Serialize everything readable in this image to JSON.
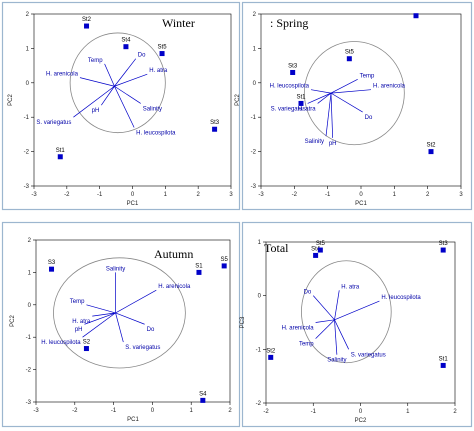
{
  "colors": {
    "frame": "#9cb6cf",
    "axis": "#000000",
    "point": "#0000c8",
    "vector": "#0000c8",
    "circle": "#888888",
    "var_text": "#0000a8"
  },
  "chart_data": [
    {
      "type": "scatter",
      "title": "Winter",
      "xlabel": "PC1",
      "ylabel": "PC2",
      "xlim": [
        -3,
        3
      ],
      "ylim": [
        -3,
        2
      ],
      "xticks": [
        "-3",
        "-2",
        "-1",
        "0",
        "1",
        "2",
        "3"
      ],
      "yticks": [
        "-3",
        "-2",
        "-1",
        "0",
        "1",
        "2"
      ],
      "points": [
        {
          "label": "St2",
          "x": -1.4,
          "y": 1.65
        },
        {
          "label": "St4",
          "x": -0.2,
          "y": 1.05
        },
        {
          "label": "St5",
          "x": 0.9,
          "y": 0.85
        },
        {
          "label": "St3",
          "x": 2.5,
          "y": -1.35
        },
        {
          "label": "St1",
          "x": -2.2,
          "y": -2.15
        }
      ],
      "circle": {
        "cx": -0.45,
        "cy": 0.0,
        "r": 1.45
      },
      "origin": {
        "x": -0.55,
        "y": -0.1
      },
      "vectors": [
        {
          "label": "Do",
          "x": 0.1,
          "y": 0.7
        },
        {
          "label": "Temp",
          "x": -0.85,
          "y": 0.55
        },
        {
          "label": "H. arenicola",
          "x": -1.6,
          "y": 0.15
        },
        {
          "label": "H. atra",
          "x": 0.45,
          "y": 0.25
        },
        {
          "label": "pH",
          "x": -0.95,
          "y": -0.65
        },
        {
          "label": "Salinity",
          "x": 0.25,
          "y": -0.6
        },
        {
          "label": "S. variegatus",
          "x": -1.8,
          "y": -1.0
        },
        {
          "label": "H. leucospilota",
          "x": 0.05,
          "y": -1.3
        }
      ]
    },
    {
      "type": "scatter",
      "title": "Spring",
      "title_prefix": ":",
      "xlabel": "PC1",
      "ylabel": "PC2",
      "xlim": [
        -3,
        3
      ],
      "ylim": [
        -3,
        2
      ],
      "xticks": [
        "-3",
        "-2",
        "-1",
        "0",
        "1",
        "2",
        "3"
      ],
      "yticks": [
        "-3",
        "-2",
        "-1",
        "0",
        "1",
        "2"
      ],
      "points": [
        {
          "label": "",
          "x": 1.65,
          "y": 1.95
        },
        {
          "label": "St5",
          "x": -0.35,
          "y": 0.7
        },
        {
          "label": "St3",
          "x": -2.05,
          "y": 0.3
        },
        {
          "label": "St1",
          "x": -1.8,
          "y": -0.6
        },
        {
          "label": "St2",
          "x": 2.1,
          "y": -2.0
        }
      ],
      "circle": {
        "cx": -0.2,
        "cy": -0.3,
        "r": 1.5
      },
      "origin": {
        "x": -0.9,
        "y": -0.3
      },
      "vectors": [
        {
          "label": "Temp",
          "x": -0.1,
          "y": 0.1
        },
        {
          "label": "H. arenicola",
          "x": 0.3,
          "y": -0.2
        },
        {
          "label": "H. leucospilota",
          "x": -1.5,
          "y": -0.2
        },
        {
          "label": "S. variegatus",
          "x": -1.6,
          "y": -0.6
        },
        {
          "label": "H. atra",
          "x": -1.3,
          "y": -0.6
        },
        {
          "label": "Do",
          "x": 0.05,
          "y": -0.85
        },
        {
          "label": "Salinity",
          "x": -1.05,
          "y": -1.55
        },
        {
          "label": "pH",
          "x": -0.85,
          "y": -1.6
        }
      ]
    },
    {
      "type": "scatter",
      "title": "Autumn",
      "xlabel": "PC1",
      "ylabel": "PC2",
      "xlim": [
        -3,
        2
      ],
      "ylim": [
        -3,
        2
      ],
      "xticks": [
        "-3",
        "-2",
        "-1",
        "0",
        "1",
        "2"
      ],
      "yticks": [
        "-3",
        "-2",
        "-1",
        "0",
        "1",
        "2"
      ],
      "points": [
        {
          "label": "S3",
          "x": -2.6,
          "y": 1.1
        },
        {
          "label": "S1",
          "x": 1.2,
          "y": 1.0
        },
        {
          "label": "S5",
          "x": 1.85,
          "y": 1.2
        },
        {
          "label": "S2",
          "x": -1.7,
          "y": -1.35
        },
        {
          "label": "S4",
          "x": 1.3,
          "y": -2.95
        }
      ],
      "circle": {
        "cx": -0.85,
        "cy": -0.25,
        "r": 1.7
      },
      "origin": {
        "x": -0.95,
        "y": -0.25
      },
      "vectors": [
        {
          "label": "Salinity",
          "x": -0.95,
          "y": 1.0
        },
        {
          "label": "H. arenicola",
          "x": 0.1,
          "y": 0.45
        },
        {
          "label": "Temp",
          "x": -1.7,
          "y": 0.0
        },
        {
          "label": "H. atra",
          "x": -1.55,
          "y": -0.35
        },
        {
          "label": "pH",
          "x": -1.75,
          "y": -0.6
        },
        {
          "label": "Do",
          "x": -0.2,
          "y": -0.6
        },
        {
          "label": "H. leucospilota",
          "x": -1.8,
          "y": -1.0
        },
        {
          "label": "S. variegatus",
          "x": -0.75,
          "y": -1.15
        }
      ]
    },
    {
      "type": "scatter",
      "title": "Total",
      "xlabel": "PC2",
      "ylabel": "PC3",
      "xlim": [
        -2,
        2
      ],
      "ylim": [
        -2,
        1
      ],
      "xticks": [
        "-2",
        "-1",
        "0",
        "1",
        "2"
      ],
      "yticks": [
        "-2",
        "-1",
        "0",
        "1"
      ],
      "points": [
        {
          "label": "St4",
          "x": -0.95,
          "y": 0.75
        },
        {
          "label": "St5",
          "x": -0.85,
          "y": 0.85
        },
        {
          "label": "St3",
          "x": 1.75,
          "y": 0.85
        },
        {
          "label": "St2",
          "x": -1.9,
          "y": -1.15
        },
        {
          "label": "St1",
          "x": 1.75,
          "y": -1.3
        }
      ],
      "circle": {
        "cx": -0.3,
        "cy": -0.3,
        "r": 0.95
      },
      "origin": {
        "x": -0.55,
        "y": -0.45
      },
      "vectors": [
        {
          "label": "H. atra",
          "x": -0.45,
          "y": 0.1
        },
        {
          "label": "Do",
          "x": -1.0,
          "y": 0.0
        },
        {
          "label": "H. leucospilota",
          "x": 0.4,
          "y": -0.1
        },
        {
          "label": "H. arenicola",
          "x": -0.95,
          "y": -0.5
        },
        {
          "label": "Temp",
          "x": -0.95,
          "y": -0.8
        },
        {
          "label": "S. variegatus",
          "x": -0.25,
          "y": -1.0
        },
        {
          "label": "Salinity",
          "x": -0.5,
          "y": -1.1
        }
      ]
    }
  ]
}
